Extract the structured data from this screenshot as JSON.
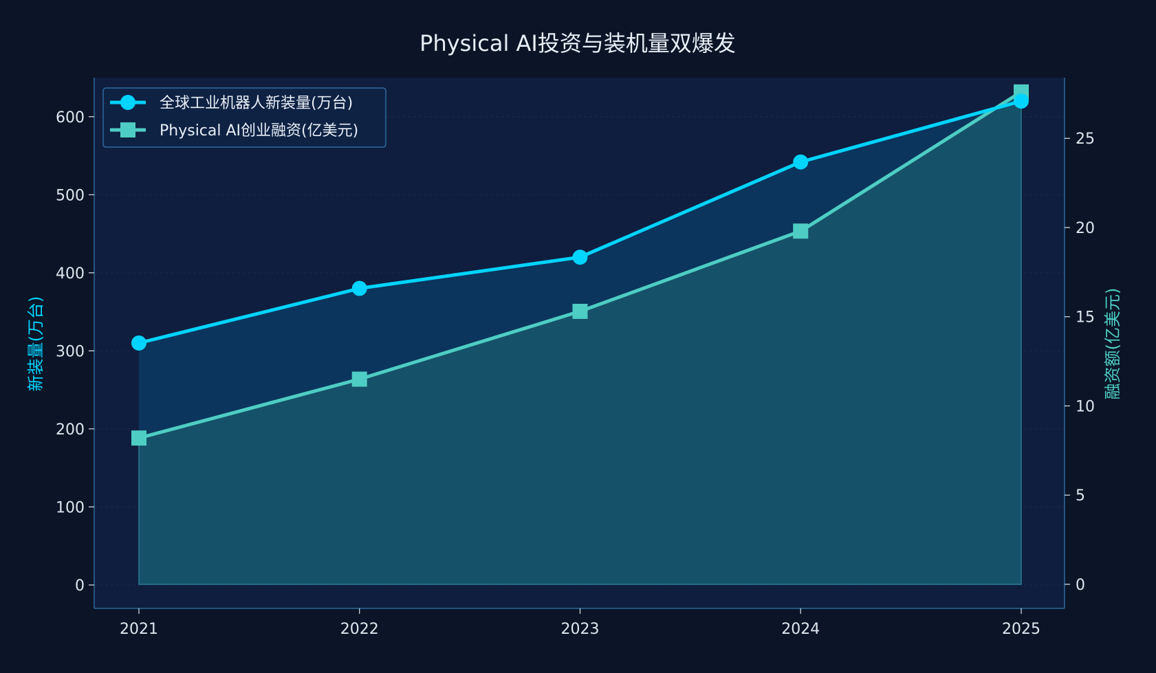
{
  "chart_data": {
    "type": "line",
    "title": "Physical AI投资与装机量双爆发",
    "xlabel": "",
    "ylabel_left": "新装量(万台)",
    "ylabel_right": "融资额(亿美元)",
    "categories": [
      "2021",
      "2022",
      "2023",
      "2024",
      "2025"
    ],
    "ylim_left": [
      -30,
      650
    ],
    "yticks_left": [
      0,
      100,
      200,
      300,
      400,
      500,
      600
    ],
    "ylim_right": [
      -1.35,
      28.4
    ],
    "yticks_right": [
      0,
      5,
      10,
      15,
      20,
      25
    ],
    "grid": true,
    "legend_position": "top-left",
    "series": [
      {
        "name": "全球工业机器人新装量(万台)",
        "axis": "left",
        "marker": "circle",
        "values": [
          310,
          380,
          420,
          542,
          620
        ],
        "color": "#00d4ff"
      },
      {
        "name": "Physical AI创业融资(亿美元)",
        "axis": "right",
        "marker": "square",
        "values": [
          8.2,
          11.5,
          15.3,
          19.8,
          27.6
        ],
        "color": "#4ecdc4"
      }
    ]
  },
  "colors": {
    "background": "#0b1527",
    "plot_background": "#0f1e3e",
    "axis": "#2f6a9e",
    "tick_text": "#dfe6ee",
    "title_text": "#e8eef5",
    "left_label": "#00d4ff",
    "right_label": "#4ecdc4"
  }
}
